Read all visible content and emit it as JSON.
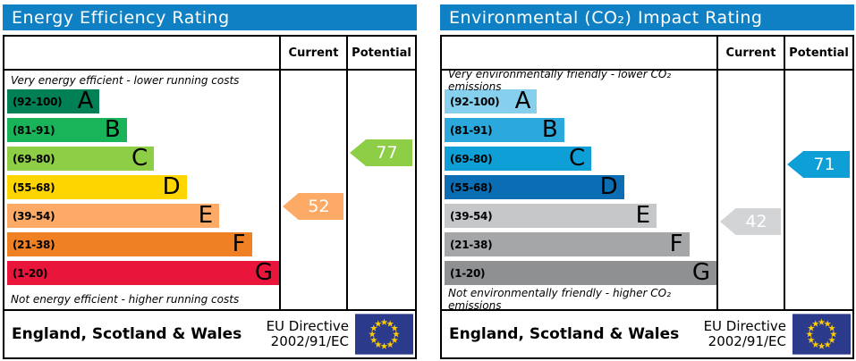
{
  "chart_data": [
    {
      "type": "bar",
      "title": "Energy Efficiency Rating",
      "header_color": "#1080c5",
      "top_caption": "Very energy efficient - lower running costs",
      "bottom_caption": "Not energy efficient - higher running costs",
      "columns": [
        "Current",
        "Potential"
      ],
      "categories": [
        "A",
        "B",
        "C",
        "D",
        "E",
        "F",
        "G"
      ],
      "bands": [
        {
          "letter": "A",
          "range": "(92-100)",
          "range_min": 92,
          "range_max": 100,
          "color": "#008054",
          "width": "34%"
        },
        {
          "letter": "B",
          "range": "(81-91)",
          "range_min": 81,
          "range_max": 91,
          "color": "#19b459",
          "width": "44%"
        },
        {
          "letter": "C",
          "range": "(69-80)",
          "range_min": 69,
          "range_max": 80,
          "color": "#8dce46",
          "width": "54%"
        },
        {
          "letter": "D",
          "range": "(55-68)",
          "range_min": 55,
          "range_max": 68,
          "color": "#ffd500",
          "width": "66%"
        },
        {
          "letter": "E",
          "range": "(39-54)",
          "range_min": 39,
          "range_max": 54,
          "color": "#fcaa65",
          "width": "78%"
        },
        {
          "letter": "F",
          "range": "(21-38)",
          "range_min": 21,
          "range_max": 38,
          "color": "#ef8023",
          "width": "90%"
        },
        {
          "letter": "G",
          "range": "(1-20)",
          "range_min": 1,
          "range_max": 20,
          "color": "#e9153b",
          "width": "100%"
        }
      ],
      "current": {
        "label": "Current",
        "value": 52,
        "band": "E",
        "band_index": 4,
        "color": "#fcaa65"
      },
      "potential": {
        "label": "Potential",
        "value": 77,
        "band": "C",
        "band_index": 2,
        "color": "#8dce46"
      },
      "footer_region": "England, Scotland & Wales",
      "footer_directive": [
        "EU Directive",
        "2002/91/EC"
      ]
    },
    {
      "type": "bar",
      "title": "Environmental (CO₂) Impact Rating",
      "header_color": "#1080c5",
      "top_caption": "Very environmentally friendly - lower CO₂ emissions",
      "bottom_caption": "Not environmentally friendly - higher CO₂ emissions",
      "columns": [
        "Current",
        "Potential"
      ],
      "categories": [
        "A",
        "B",
        "C",
        "D",
        "E",
        "F",
        "G"
      ],
      "bands": [
        {
          "letter": "A",
          "range": "(92-100)",
          "range_min": 92,
          "range_max": 100,
          "color": "#86d0ee",
          "width": "34%"
        },
        {
          "letter": "B",
          "range": "(81-91)",
          "range_min": 81,
          "range_max": 91,
          "color": "#2ca9dc",
          "width": "44%"
        },
        {
          "letter": "C",
          "range": "(69-80)",
          "range_min": 69,
          "range_max": 80,
          "color": "#0f9fd7",
          "width": "54%"
        },
        {
          "letter": "D",
          "range": "(55-68)",
          "range_min": 55,
          "range_max": 68,
          "color": "#0b6eb4",
          "width": "66%"
        },
        {
          "letter": "E",
          "range": "(39-54)",
          "range_min": 39,
          "range_max": 54,
          "color": "#c6c7c9",
          "width": "78%"
        },
        {
          "letter": "F",
          "range": "(21-38)",
          "range_min": 21,
          "range_max": 38,
          "color": "#a5a6a8",
          "width": "90%"
        },
        {
          "letter": "G",
          "range": "(1-20)",
          "range_min": 1,
          "range_max": 20,
          "color": "#8e9092",
          "width": "100%"
        }
      ],
      "current": {
        "label": "Current",
        "value": 42,
        "band": "E",
        "band_index": 4,
        "color": "#d3d4d6"
      },
      "potential": {
        "label": "Potential",
        "value": 71,
        "band": "C",
        "band_index": 2,
        "color": "#0f9fd7"
      },
      "footer_region": "England, Scotland & Wales",
      "footer_directive": [
        "EU Directive",
        "2002/91/EC"
      ]
    }
  ],
  "eu_flag": {
    "background": "#2c3a8c",
    "star_color": "#ffcc00"
  }
}
